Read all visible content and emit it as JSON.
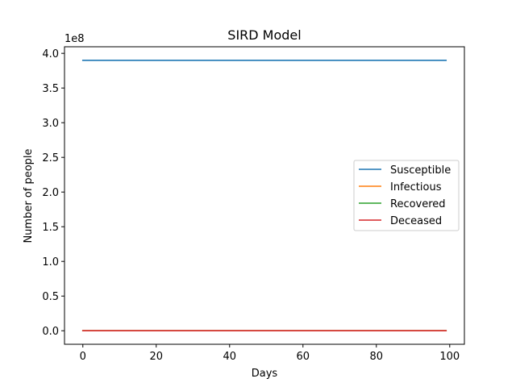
{
  "chart_data": {
    "type": "line",
    "title": "SIRD Model",
    "xlabel": "Days",
    "ylabel": "Number of people",
    "y_offset_label": "1e8",
    "y_scale_factor": 100000000,
    "xlim": [
      -5,
      104
    ],
    "ylim": [
      -0.195,
      4.095
    ],
    "x_ticks": [
      0,
      20,
      40,
      60,
      80,
      100
    ],
    "x_tick_labels": [
      "0",
      "20",
      "40",
      "60",
      "80",
      "100"
    ],
    "y_ticks": [
      0.0,
      0.5,
      1.0,
      1.5,
      2.0,
      2.5,
      3.0,
      3.5,
      4.0
    ],
    "y_tick_labels": [
      "0.0",
      "0.5",
      "1.0",
      "1.5",
      "2.0",
      "2.5",
      "3.0",
      "3.5",
      "4.0"
    ],
    "grid": false,
    "legend_position": "center-right",
    "x_range": [
      0,
      99
    ],
    "series": [
      {
        "name": "Susceptible",
        "color": "#1f77b4",
        "values": [
          3.9,
          3.9
        ]
      },
      {
        "name": "Infectious",
        "color": "#ff7f0e",
        "values": [
          0.0,
          0.0
        ]
      },
      {
        "name": "Recovered",
        "color": "#2ca02c",
        "values": [
          0.0,
          0.0
        ]
      },
      {
        "name": "Deceased",
        "color": "#d62728",
        "values": [
          0.0,
          0.0
        ]
      }
    ]
  }
}
